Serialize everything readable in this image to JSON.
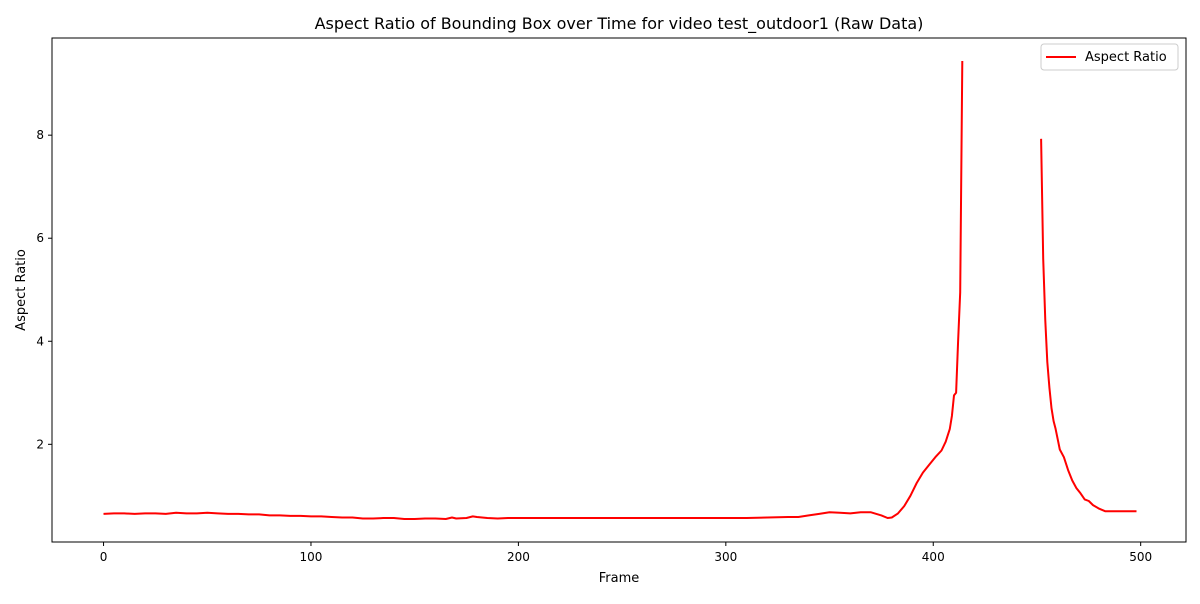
{
  "chart_data": {
    "type": "line",
    "title": "Aspect Ratio of Bounding Box over Time for video test_outdoor1 (Raw Data)",
    "xlabel": "Frame",
    "ylabel": "Aspect Ratio",
    "xlim": [
      -24.85,
      521.85
    ],
    "ylim": [
      0.104,
      9.886
    ],
    "xticks": [
      0,
      100,
      200,
      300,
      400,
      500
    ],
    "yticks": [
      2,
      4,
      6,
      8
    ],
    "xtick_labels": [
      "0",
      "100",
      "200",
      "300",
      "400",
      "500"
    ],
    "ytick_labels": [
      "2",
      "4",
      "6",
      "8"
    ],
    "grid": false,
    "legend_position": "top-right",
    "series": [
      {
        "name": "Aspect Ratio",
        "color": "#ff0000",
        "segments": [
          [
            [
              0,
              0.65
            ],
            [
              5,
              0.66
            ],
            [
              10,
              0.66
            ],
            [
              15,
              0.65
            ],
            [
              20,
              0.66
            ],
            [
              25,
              0.66
            ],
            [
              30,
              0.65
            ],
            [
              35,
              0.67
            ],
            [
              40,
              0.66
            ],
            [
              45,
              0.66
            ],
            [
              50,
              0.67
            ],
            [
              55,
              0.66
            ],
            [
              60,
              0.65
            ],
            [
              65,
              0.65
            ],
            [
              70,
              0.64
            ],
            [
              75,
              0.64
            ],
            [
              80,
              0.62
            ],
            [
              85,
              0.62
            ],
            [
              90,
              0.61
            ],
            [
              95,
              0.61
            ],
            [
              100,
              0.6
            ],
            [
              105,
              0.6
            ],
            [
              110,
              0.59
            ],
            [
              115,
              0.58
            ],
            [
              120,
              0.58
            ],
            [
              125,
              0.56
            ],
            [
              130,
              0.56
            ],
            [
              135,
              0.57
            ],
            [
              140,
              0.57
            ],
            [
              145,
              0.55
            ],
            [
              150,
              0.55
            ],
            [
              155,
              0.56
            ],
            [
              160,
              0.56
            ],
            [
              165,
              0.55
            ],
            [
              168,
              0.58
            ],
            [
              170,
              0.56
            ],
            [
              175,
              0.57
            ],
            [
              178,
              0.6
            ],
            [
              180,
              0.59
            ],
            [
              185,
              0.57
            ],
            [
              190,
              0.56
            ],
            [
              195,
              0.57
            ],
            [
              200,
              0.57
            ],
            [
              205,
              0.57
            ],
            [
              210,
              0.57
            ],
            [
              220,
              0.57
            ],
            [
              230,
              0.57
            ],
            [
              240,
              0.57
            ],
            [
              250,
              0.57
            ],
            [
              260,
              0.57
            ],
            [
              270,
              0.57
            ],
            [
              280,
              0.57
            ],
            [
              290,
              0.57
            ],
            [
              300,
              0.57
            ],
            [
              310,
              0.57
            ],
            [
              320,
              0.58
            ],
            [
              330,
              0.59
            ],
            [
              335,
              0.59
            ],
            [
              340,
              0.62
            ],
            [
              345,
              0.65
            ],
            [
              350,
              0.68
            ],
            [
              355,
              0.67
            ],
            [
              360,
              0.66
            ],
            [
              365,
              0.68
            ],
            [
              370,
              0.68
            ],
            [
              375,
              0.62
            ],
            [
              378,
              0.57
            ],
            [
              380,
              0.58
            ],
            [
              383,
              0.66
            ],
            [
              386,
              0.8
            ],
            [
              389,
              1.0
            ],
            [
              392,
              1.25
            ],
            [
              395,
              1.45
            ],
            [
              398,
              1.6
            ],
            [
              401,
              1.75
            ],
            [
              404,
              1.88
            ],
            [
              406,
              2.05
            ],
            [
              408,
              2.3
            ],
            [
              409,
              2.55
            ],
            [
              410,
              2.95
            ],
            [
              411,
              3.0
            ],
            [
              412,
              4.0
            ],
            [
              413,
              4.95
            ],
            [
              414,
              9.44
            ]
          ],
          [
            [
              452,
              7.93
            ],
            [
              453,
              5.6
            ],
            [
              454,
              4.4
            ],
            [
              455,
              3.6
            ],
            [
              456,
              3.1
            ],
            [
              457,
              2.7
            ],
            [
              458,
              2.45
            ],
            [
              459,
              2.3
            ],
            [
              460,
              2.1
            ],
            [
              461,
              1.9
            ],
            [
              463,
              1.75
            ],
            [
              465,
              1.5
            ],
            [
              467,
              1.3
            ],
            [
              469,
              1.15
            ],
            [
              471,
              1.05
            ],
            [
              473,
              0.93
            ],
            [
              475,
              0.9
            ],
            [
              477,
              0.82
            ],
            [
              480,
              0.75
            ],
            [
              483,
              0.7
            ],
            [
              486,
              0.7
            ],
            [
              490,
              0.7
            ],
            [
              495,
              0.7
            ],
            [
              498,
              0.7
            ]
          ]
        ]
      }
    ]
  }
}
